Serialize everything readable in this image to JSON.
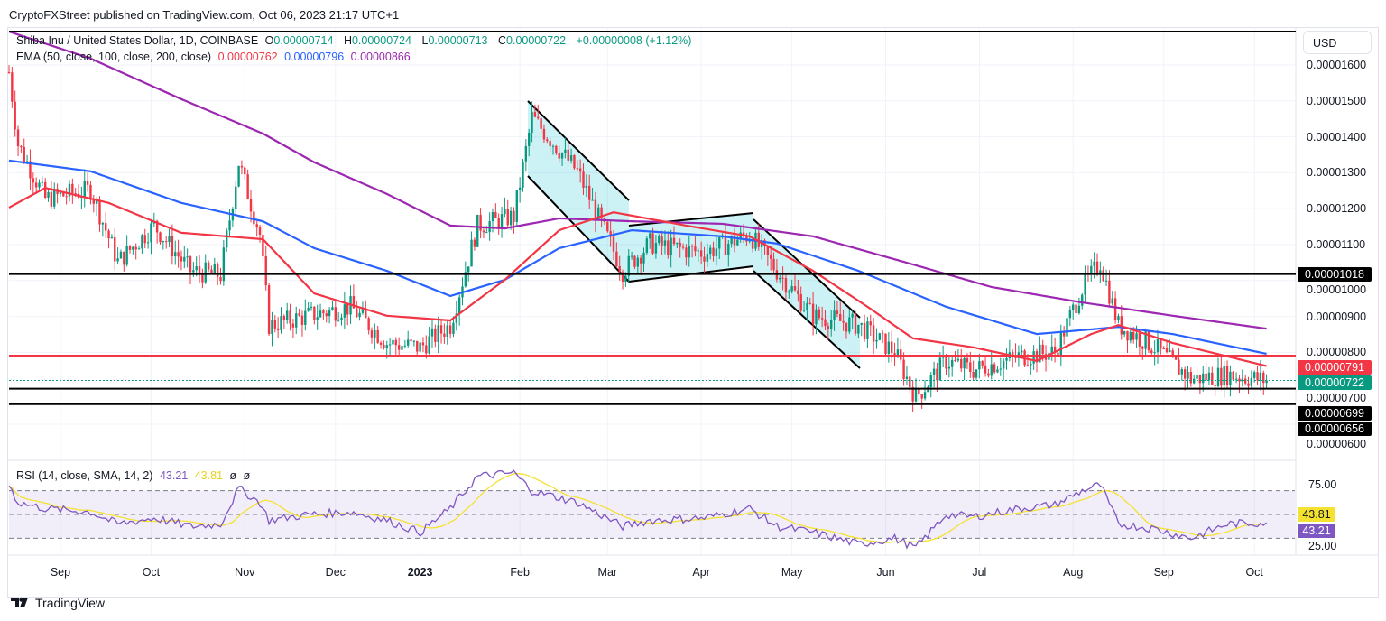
{
  "header": {
    "published": "CryptoFXStreet published on TradingView.com, Oct 06, 2023 21:17 UTC+1"
  },
  "legend": {
    "symbol": "Shiba Inu / United States Dollar, 1D, COINBASE",
    "o_label": "O",
    "o": "0.00000714",
    "h_label": "H",
    "h": "0.00000724",
    "l_label": "L",
    "l": "0.00000713",
    "c_label": "C",
    "c": "0.00000722",
    "change": "+0.00000008 (+1.12%)",
    "ema_label": "EMA (50, close, 100, close, 200, close)",
    "ema50": "0.00000762",
    "ema100": "0.00000796",
    "ema200": "0.00000866",
    "rsi_label": "RSI (14, close, SMA, 14, 2)",
    "rsi": "43.21",
    "rsi_sma": "43.81",
    "rsi_x1": "ø",
    "rsi_x2": "ø"
  },
  "currency": "USD",
  "brand": "TradingView",
  "colors": {
    "up": "#089981",
    "down": "#f23645",
    "ema50": "#f23645",
    "ema100": "#2962ff",
    "ema200": "#9c27b0",
    "rsi": "#7e57c2",
    "rsi_sma": "#f5e130"
  },
  "chart_data": {
    "type": "candlestick",
    "unit_note": "prices in 1e-6 USD; x = day offset",
    "price_axis": {
      "ticks": [
        "0.00001600",
        "0.00001500",
        "0.00001400",
        "0.00001300",
        "0.00001200",
        "0.00001100",
        "0.00001000",
        "0.00000900",
        "0.00000800",
        "0.00000700",
        "0.00000600"
      ],
      "range": [
        5.95,
        16.9
      ]
    },
    "time_axis": [
      {
        "label": "Sep",
        "day": 17
      },
      {
        "label": "Oct",
        "day": 47
      },
      {
        "label": "Nov",
        "day": 78
      },
      {
        "label": "Dec",
        "day": 108
      },
      {
        "label": "2023",
        "day": 136
      },
      {
        "label": "Feb",
        "day": 169
      },
      {
        "label": "Mar",
        "day": 198
      },
      {
        "label": "Apr",
        "day": 229
      },
      {
        "label": "May",
        "day": 259
      },
      {
        "label": "Jun",
        "day": 290
      },
      {
        "label": "Jul",
        "day": 321
      },
      {
        "label": "Aug",
        "day": 352
      },
      {
        "label": "Sep",
        "day": 382
      },
      {
        "label": "Oct",
        "day": 412
      }
    ],
    "close": [
      [
        0,
        15.8
      ],
      [
        3,
        13.79
      ],
      [
        12,
        12.28
      ],
      [
        27,
        12.53
      ],
      [
        36,
        10.52
      ],
      [
        48,
        11.53
      ],
      [
        60,
        10.27
      ],
      [
        70,
        10.15
      ],
      [
        76,
        13.29
      ],
      [
        83,
        11.28
      ],
      [
        86,
        8.76
      ],
      [
        99,
        9.02
      ],
      [
        113,
        9.27
      ],
      [
        125,
        8.26
      ],
      [
        136,
        8.14
      ],
      [
        146,
        8.76
      ],
      [
        155,
        11.53
      ],
      [
        167,
        11.78
      ],
      [
        173,
        14.54
      ],
      [
        188,
        13.04
      ],
      [
        203,
        10.27
      ],
      [
        212,
        11.03
      ],
      [
        230,
        10.77
      ],
      [
        245,
        11.28
      ],
      [
        254,
        10.27
      ],
      [
        266,
        9.02
      ],
      [
        281,
        8.76
      ],
      [
        293,
        8.01
      ],
      [
        300,
        6.75
      ],
      [
        310,
        7.76
      ],
      [
        319,
        7.51
      ],
      [
        334,
        7.88
      ],
      [
        346,
        8.01
      ],
      [
        355,
        9.77
      ],
      [
        361,
        10.52
      ],
      [
        367,
        8.76
      ],
      [
        379,
        8.14
      ],
      [
        391,
        7.26
      ],
      [
        403,
        7.38
      ],
      [
        416,
        7.22
      ]
    ],
    "ema50": [
      [
        0,
        12.03
      ],
      [
        12,
        12.58
      ],
      [
        33,
        12.16
      ],
      [
        57,
        11.33
      ],
      [
        84,
        11.15
      ],
      [
        101,
        9.64
      ],
      [
        125,
        9.02
      ],
      [
        146,
        8.89
      ],
      [
        164,
        10.02
      ],
      [
        182,
        11.4
      ],
      [
        200,
        11.9
      ],
      [
        224,
        11.53
      ],
      [
        245,
        11.23
      ],
      [
        266,
        10.27
      ],
      [
        284,
        9.27
      ],
      [
        299,
        8.39
      ],
      [
        319,
        8.14
      ],
      [
        340,
        7.76
      ],
      [
        358,
        8.51
      ],
      [
        367,
        8.76
      ],
      [
        385,
        8.26
      ],
      [
        416,
        7.62
      ]
    ],
    "ema100": [
      [
        0,
        13.34
      ],
      [
        27,
        13.04
      ],
      [
        57,
        12.16
      ],
      [
        84,
        11.65
      ],
      [
        101,
        10.9
      ],
      [
        125,
        10.27
      ],
      [
        146,
        9.57
      ],
      [
        164,
        10.02
      ],
      [
        182,
        10.9
      ],
      [
        206,
        11.4
      ],
      [
        236,
        11.23
      ],
      [
        254,
        11.03
      ],
      [
        281,
        10.27
      ],
      [
        310,
        9.27
      ],
      [
        340,
        8.51
      ],
      [
        358,
        8.64
      ],
      [
        367,
        8.71
      ],
      [
        385,
        8.51
      ],
      [
        416,
        7.96
      ]
    ],
    "ema200": [
      [
        0,
        16.93
      ],
      [
        27,
        16.18
      ],
      [
        57,
        15.05
      ],
      [
        84,
        14.09
      ],
      [
        101,
        13.29
      ],
      [
        125,
        12.41
      ],
      [
        146,
        11.53
      ],
      [
        164,
        11.45
      ],
      [
        182,
        11.73
      ],
      [
        206,
        11.65
      ],
      [
        236,
        11.58
      ],
      [
        266,
        11.23
      ],
      [
        296,
        10.52
      ],
      [
        325,
        9.82
      ],
      [
        355,
        9.39
      ],
      [
        385,
        9.02
      ],
      [
        416,
        8.66
      ]
    ],
    "levels": [
      {
        "price": 16.93,
        "color": "#000000",
        "label": ""
      },
      {
        "price": 10.18,
        "color": "#000000",
        "label": "0.00001018"
      },
      {
        "price": 7.91,
        "color": "#f23645",
        "label": "0.00000791"
      },
      {
        "price": 6.99,
        "color": "#000000",
        "label": "0.00000699"
      },
      {
        "price": 6.56,
        "color": "#000000",
        "label": "0.00000656"
      }
    ],
    "last_price": {
      "price": 7.22,
      "label": "0.00000722"
    },
    "rsi": {
      "ticks": [
        "75.00",
        "25.00"
      ],
      "bands": [
        70,
        50,
        30
      ],
      "values": [
        [
          0,
          75
        ],
        [
          3,
          60
        ],
        [
          12,
          55
        ],
        [
          27,
          52
        ],
        [
          36,
          42
        ],
        [
          48,
          47
        ],
        [
          60,
          40
        ],
        [
          70,
          42
        ],
        [
          76,
          72
        ],
        [
          83,
          60
        ],
        [
          86,
          45
        ],
        [
          99,
          50
        ],
        [
          113,
          52
        ],
        [
          125,
          45
        ],
        [
          136,
          35
        ],
        [
          146,
          55
        ],
        [
          155,
          82
        ],
        [
          167,
          85
        ],
        [
          173,
          70
        ],
        [
          188,
          60
        ],
        [
          203,
          40
        ],
        [
          212,
          45
        ],
        [
          230,
          47
        ],
        [
          245,
          55
        ],
        [
          254,
          40
        ],
        [
          266,
          35
        ],
        [
          281,
          25
        ],
        [
          293,
          30
        ],
        [
          300,
          22
        ],
        [
          310,
          50
        ],
        [
          319,
          48
        ],
        [
          334,
          55
        ],
        [
          346,
          58
        ],
        [
          355,
          70
        ],
        [
          361,
          75
        ],
        [
          367,
          42
        ],
        [
          379,
          38
        ],
        [
          391,
          30
        ],
        [
          403,
          42
        ],
        [
          416,
          43.21
        ]
      ],
      "last": "43.21",
      "sma_last": "43.81"
    }
  }
}
